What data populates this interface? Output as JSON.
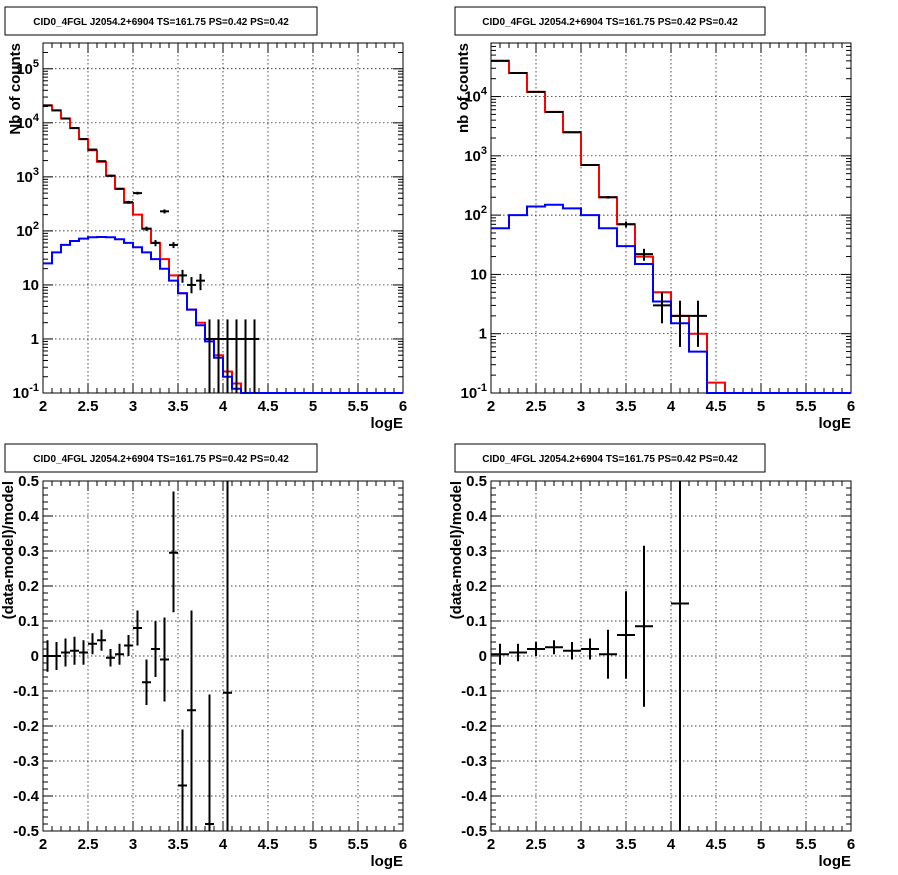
{
  "chart_data": [
    {
      "type": "line",
      "title": "CID0_4FGL J2054.2+6904 TS=161.75 PS=0.42 PS=0.42",
      "xlabel": "logE",
      "ylabel": "Nb of counts",
      "xlim": [
        2,
        6
      ],
      "ylim": [
        0.1,
        300000
      ],
      "yscale": "log",
      "grid": true,
      "x_ticks": [
        "2",
        "2.5",
        "3",
        "3.5",
        "4",
        "4.5",
        "5",
        "5.5",
        "6"
      ],
      "y_ticks": [
        {
          "v": 0.1,
          "label": "10",
          "exp": "-1"
        },
        {
          "v": 1,
          "label": "1",
          "exp": ""
        },
        {
          "v": 10,
          "label": "10",
          "exp": ""
        },
        {
          "v": 100,
          "label": "10",
          "exp": "2"
        },
        {
          "v": 1000,
          "label": "10",
          "exp": "3"
        },
        {
          "v": 10000,
          "label": "10",
          "exp": "4"
        },
        {
          "v": 100000,
          "label": "10",
          "exp": "5"
        }
      ],
      "bin_edges": [
        2.0,
        2.1,
        2.2,
        2.3,
        2.4,
        2.5,
        2.6,
        2.7,
        2.8,
        2.9,
        3.0,
        3.1,
        3.2,
        3.3,
        3.4,
        3.5,
        3.6,
        3.7,
        3.8,
        3.9,
        4.0,
        4.1,
        4.2,
        4.3,
        4.4,
        4.5,
        4.6,
        4.7,
        4.8,
        4.9,
        5.0,
        5.1,
        5.2,
        5.3,
        5.4,
        5.5,
        5.6,
        5.7,
        5.8,
        5.9,
        6.0
      ],
      "series": [
        {
          "color": "#ff0000",
          "values": [
            21000,
            17000,
            12000,
            8000,
            5000,
            3100,
            1900,
            1050,
            600,
            330,
            200,
            110,
            60,
            30,
            15,
            7,
            3.5,
            2,
            1,
            0.5,
            0.25,
            0.15,
            0.1,
            0.1,
            0.1,
            0.1,
            0.1,
            0.1,
            0.1,
            0.1,
            0.1,
            0.1,
            0.1,
            0.1,
            0.1,
            0.1,
            0.1,
            0.1,
            0.1,
            0.1
          ]
        },
        {
          "color": "#0000ff",
          "values": [
            25,
            40,
            55,
            65,
            72,
            76,
            77,
            76,
            70,
            60,
            50,
            40,
            30,
            20,
            12,
            7,
            3.5,
            1.8,
            0.9,
            0.45,
            0.2,
            0.12,
            0.1,
            0.1,
            0.1,
            0.1,
            0.1,
            0.1,
            0.1,
            0.1,
            0.1,
            0.1,
            0.1,
            0.1,
            0.1,
            0.1,
            0.1,
            0.1,
            0.1,
            0.1
          ]
        }
      ],
      "points": [
        {
          "x": 2.05,
          "y": 21000,
          "lo": 20800,
          "hi": 21200
        },
        {
          "x": 2.15,
          "y": 17000,
          "lo": 16800,
          "hi": 17200
        },
        {
          "x": 2.25,
          "y": 12000,
          "lo": 11800,
          "hi": 12200
        },
        {
          "x": 2.35,
          "y": 8000,
          "lo": 7900,
          "hi": 8100
        },
        {
          "x": 2.45,
          "y": 5000,
          "lo": 4900,
          "hi": 5100
        },
        {
          "x": 2.55,
          "y": 3200,
          "lo": 3100,
          "hi": 3300
        },
        {
          "x": 2.65,
          "y": 1950,
          "lo": 1900,
          "hi": 2000
        },
        {
          "x": 2.75,
          "y": 1050,
          "lo": 1000,
          "hi": 1100
        },
        {
          "x": 2.85,
          "y": 600,
          "lo": 580,
          "hi": 620
        },
        {
          "x": 2.95,
          "y": 340,
          "lo": 320,
          "hi": 360
        },
        {
          "x": 3.05,
          "y": 500,
          "lo": 470,
          "hi": 530
        },
        {
          "x": 3.15,
          "y": 110,
          "lo": 100,
          "hi": 120
        },
        {
          "x": 3.25,
          "y": 60,
          "lo": 52,
          "hi": 68
        },
        {
          "x": 3.35,
          "y": 230,
          "lo": 210,
          "hi": 250
        },
        {
          "x": 3.45,
          "y": 55,
          "lo": 48,
          "hi": 62
        },
        {
          "x": 3.55,
          "y": 15,
          "lo": 11,
          "hi": 19
        },
        {
          "x": 3.65,
          "y": 10,
          "lo": 7,
          "hi": 14
        },
        {
          "x": 3.75,
          "y": 12,
          "lo": 8,
          "hi": 16
        },
        {
          "x": 3.85,
          "y": 1,
          "lo": 0.1,
          "hi": 2.3
        },
        {
          "x": 3.95,
          "y": 1,
          "lo": 0.1,
          "hi": 2.3
        },
        {
          "x": 4.05,
          "y": 1,
          "lo": 0.1,
          "hi": 2.3
        },
        {
          "x": 4.15,
          "y": 1,
          "lo": 0.1,
          "hi": 2.3
        },
        {
          "x": 4.25,
          "y": 1,
          "lo": 0.1,
          "hi": 2.3
        },
        {
          "x": 4.35,
          "y": 1,
          "lo": 0.1,
          "hi": 2.3
        }
      ]
    },
    {
      "type": "line",
      "title": "CID0_4FGL J2054.2+6904 TS=161.75 PS=0.42 PS=0.42",
      "xlabel": "logE",
      "ylabel": "nb of counts",
      "xlim": [
        2,
        6
      ],
      "ylim": [
        0.1,
        80000
      ],
      "yscale": "log",
      "grid": true,
      "x_ticks": [
        "2",
        "2.5",
        "3",
        "3.5",
        "4",
        "4.5",
        "5",
        "5.5",
        "6"
      ],
      "y_ticks": [
        {
          "v": 0.1,
          "label": "10",
          "exp": "-1"
        },
        {
          "v": 1,
          "label": "1",
          "exp": ""
        },
        {
          "v": 10,
          "label": "10",
          "exp": ""
        },
        {
          "v": 100,
          "label": "10",
          "exp": "2"
        },
        {
          "v": 1000,
          "label": "10",
          "exp": "3"
        },
        {
          "v": 10000,
          "label": "10",
          "exp": "4"
        }
      ],
      "bin_edges": [
        2.0,
        2.2,
        2.4,
        2.6,
        2.8,
        3.0,
        3.2,
        3.4,
        3.6,
        3.8,
        4.0,
        4.2,
        4.4,
        4.6,
        4.8,
        5.0,
        5.2,
        5.4,
        5.6,
        5.8,
        6.0
      ],
      "series": [
        {
          "color": "#ff0000",
          "values": [
            40000,
            25000,
            12000,
            5500,
            2500,
            700,
            200,
            70,
            20,
            5,
            2,
            1,
            0.15,
            0.1,
            0.1,
            0.1,
            0.1,
            0.1,
            0.1,
            0.1
          ]
        },
        {
          "color": "#0000ff",
          "values": [
            60,
            100,
            140,
            150,
            130,
            100,
            60,
            30,
            15,
            3.5,
            1.5,
            0.5,
            0.1,
            0.1,
            0.1,
            0.1,
            0.1,
            0.1,
            0.1,
            0.1
          ]
        }
      ],
      "points": [
        {
          "x": 2.1,
          "y": 40000,
          "lo": 39800,
          "hi": 40200
        },
        {
          "x": 2.3,
          "y": 25000,
          "lo": 24800,
          "hi": 25200
        },
        {
          "x": 2.5,
          "y": 12000,
          "lo": 11900,
          "hi": 12100
        },
        {
          "x": 2.7,
          "y": 5500,
          "lo": 5400,
          "hi": 5600
        },
        {
          "x": 2.9,
          "y": 2500,
          "lo": 2450,
          "hi": 2550
        },
        {
          "x": 3.1,
          "y": 700,
          "lo": 680,
          "hi": 720
        },
        {
          "x": 3.3,
          "y": 200,
          "lo": 190,
          "hi": 210
        },
        {
          "x": 3.5,
          "y": 70,
          "lo": 62,
          "hi": 78
        },
        {
          "x": 3.7,
          "y": 22,
          "lo": 17,
          "hi": 27
        },
        {
          "x": 3.9,
          "y": 3,
          "lo": 1.5,
          "hi": 5
        },
        {
          "x": 4.1,
          "y": 2,
          "lo": 0.6,
          "hi": 3.6
        },
        {
          "x": 4.3,
          "y": 2,
          "lo": 0.6,
          "hi": 3.6
        }
      ]
    },
    {
      "type": "scatter",
      "title": "CID0_4FGL J2054.2+6904 TS=161.75 PS=0.42 PS=0.42",
      "xlabel": "logE",
      "ylabel": "(data-model)/model",
      "xlim": [
        2,
        6
      ],
      "ylim": [
        -0.5,
        0.5
      ],
      "grid": true,
      "x_ticks": [
        "2",
        "2.5",
        "3",
        "3.5",
        "4",
        "4.5",
        "5",
        "5.5",
        "6"
      ],
      "y_ticks": [
        "-0.5",
        "-0.4",
        "-0.3",
        "-0.2",
        "-0.1",
        "0",
        "0.1",
        "0.2",
        "0.3",
        "0.4",
        "0.5"
      ],
      "xerr": 0.05,
      "points": [
        {
          "x": 2.05,
          "y": 0.0,
          "lo": -0.045,
          "hi": 0.045
        },
        {
          "x": 2.15,
          "y": 0.0,
          "lo": -0.04,
          "hi": 0.04
        },
        {
          "x": 2.25,
          "y": 0.01,
          "lo": -0.03,
          "hi": 0.05
        },
        {
          "x": 2.35,
          "y": 0.015,
          "lo": -0.025,
          "hi": 0.055
        },
        {
          "x": 2.45,
          "y": 0.01,
          "lo": -0.025,
          "hi": 0.045
        },
        {
          "x": 2.55,
          "y": 0.035,
          "lo": 0.005,
          "hi": 0.065
        },
        {
          "x": 2.65,
          "y": 0.045,
          "lo": 0.015,
          "hi": 0.075
        },
        {
          "x": 2.75,
          "y": -0.005,
          "lo": -0.03,
          "hi": 0.02
        },
        {
          "x": 2.85,
          "y": 0.005,
          "lo": -0.025,
          "hi": 0.035
        },
        {
          "x": 2.95,
          "y": 0.03,
          "lo": 0.0,
          "hi": 0.06
        },
        {
          "x": 3.05,
          "y": 0.08,
          "lo": 0.03,
          "hi": 0.13
        },
        {
          "x": 3.15,
          "y": -0.075,
          "lo": -0.14,
          "hi": -0.01
        },
        {
          "x": 3.25,
          "y": 0.02,
          "lo": -0.06,
          "hi": 0.1
        },
        {
          "x": 3.35,
          "y": -0.01,
          "lo": -0.13,
          "hi": 0.11
        },
        {
          "x": 3.45,
          "y": 0.295,
          "lo": 0.125,
          "hi": 0.47
        },
        {
          "x": 3.55,
          "y": -0.37,
          "lo": -0.5,
          "hi": -0.21
        },
        {
          "x": 3.65,
          "y": -0.155,
          "lo": -0.5,
          "hi": 0.13
        },
        {
          "x": 3.85,
          "y": -0.48,
          "lo": -0.5,
          "hi": -0.11
        },
        {
          "x": 4.05,
          "y": -0.105,
          "lo": -0.5,
          "hi": 0.5
        }
      ]
    },
    {
      "type": "scatter",
      "title": "CID0_4FGL J2054.2+6904 TS=161.75 PS=0.42 PS=0.42",
      "xlabel": "logE",
      "ylabel": "(data-model)/model",
      "xlim": [
        2,
        6
      ],
      "ylim": [
        -0.5,
        0.5
      ],
      "grid": true,
      "x_ticks": [
        "2",
        "2.5",
        "3",
        "3.5",
        "4",
        "4.5",
        "5",
        "5.5",
        "6"
      ],
      "y_ticks": [
        "-0.5",
        "-0.4",
        "-0.3",
        "-0.2",
        "-0.1",
        "0",
        "0.1",
        "0.2",
        "0.3",
        "0.4",
        "0.5"
      ],
      "xerr": 0.1,
      "points": [
        {
          "x": 2.1,
          "y": 0.005,
          "lo": -0.025,
          "hi": 0.035
        },
        {
          "x": 2.3,
          "y": 0.01,
          "lo": -0.015,
          "hi": 0.035
        },
        {
          "x": 2.5,
          "y": 0.02,
          "lo": 0.0,
          "hi": 0.04
        },
        {
          "x": 2.7,
          "y": 0.025,
          "lo": 0.005,
          "hi": 0.045
        },
        {
          "x": 2.9,
          "y": 0.015,
          "lo": -0.01,
          "hi": 0.04
        },
        {
          "x": 3.1,
          "y": 0.02,
          "lo": -0.01,
          "hi": 0.05
        },
        {
          "x": 3.3,
          "y": 0.005,
          "lo": -0.065,
          "hi": 0.075
        },
        {
          "x": 3.5,
          "y": 0.06,
          "lo": -0.065,
          "hi": 0.185
        },
        {
          "x": 3.7,
          "y": 0.085,
          "lo": -0.145,
          "hi": 0.315
        },
        {
          "x": 4.1,
          "y": 0.15,
          "lo": -0.5,
          "hi": 0.5
        }
      ]
    }
  ]
}
